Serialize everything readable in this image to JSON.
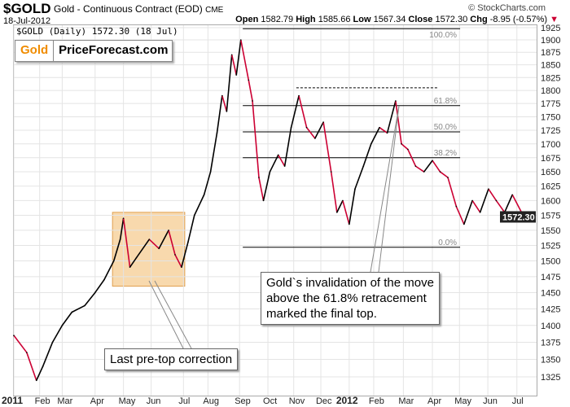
{
  "header": {
    "symbol": "$GOLD",
    "name": "Gold - Continuous Contract (EOD)",
    "exchange": "CME",
    "date": "18-Jul-2012",
    "credit": "© StockCharts.com",
    "open_label": "Open",
    "open": "1582.79",
    "high_label": "High",
    "high": "1585.66",
    "low_label": "Low",
    "low": "1567.34",
    "close_label": "Close",
    "close": "1572.30",
    "chg_label": "Chg",
    "chg": "-8.95 (-0.57%)",
    "chg_icon": "down-triangle-icon"
  },
  "legend": "$GOLD (Daily) 1572.30 (18 Jul)",
  "logo": {
    "gold": "Gold",
    "rest": "PriceForecast.com"
  },
  "annotations": {
    "top_note_lines": [
      "Gold`s invalidation of the move",
      "above the 61.8% retracement",
      "marked the final top."
    ],
    "correction_note": "Last pre-top correction"
  },
  "colors": {
    "up": "#000000",
    "down": "#cc0033",
    "highlight": "#f5c98a",
    "accent": "#f08c00"
  },
  "chart_data": {
    "type": "line",
    "scale": "log",
    "ylim": [
      1300,
      1935
    ],
    "yticks": [
      1325,
      1350,
      1375,
      1400,
      1425,
      1450,
      1475,
      1500,
      1525,
      1550,
      1575,
      1600,
      1625,
      1650,
      1675,
      1700,
      1725,
      1750,
      1775,
      1800,
      1825,
      1850,
      1875,
      1900,
      1925
    ],
    "xticks": [
      {
        "label": "2011",
        "week": 0,
        "bold": true
      },
      {
        "label": "Feb",
        "week": 4
      },
      {
        "label": "Mar",
        "week": 7.5
      },
      {
        "label": "Apr",
        "week": 12.6
      },
      {
        "label": "May",
        "week": 17
      },
      {
        "label": "Jun",
        "week": 21.3
      },
      {
        "label": "Jul",
        "week": 26.3
      },
      {
        "label": "Aug",
        "week": 30.1
      },
      {
        "label": "Sep",
        "week": 35
      },
      {
        "label": "Oct",
        "week": 39.4
      },
      {
        "label": "Nov",
        "week": 43.4
      },
      {
        "label": "Dec",
        "week": 47.6
      },
      {
        "label": "2012",
        "week": 52,
        "bold": true
      },
      {
        "label": "Feb",
        "week": 55.8
      },
      {
        "label": "Mar",
        "week": 60.4
      },
      {
        "label": "Apr",
        "week": 64.9
      },
      {
        "label": "May",
        "week": 69.1
      },
      {
        "label": "Jun",
        "week": 73.5
      },
      {
        "label": "Jul",
        "week": 78
      }
    ],
    "points": [
      [
        0,
        1385
      ],
      [
        2,
        1360
      ],
      [
        3.5,
        1320
      ],
      [
        4.5,
        1340
      ],
      [
        6,
        1375
      ],
      [
        7.5,
        1400
      ],
      [
        9,
        1420
      ],
      [
        11,
        1430
      ],
      [
        12.6,
        1450
      ],
      [
        14,
        1470
      ],
      [
        15.5,
        1500
      ],
      [
        16.5,
        1535
      ],
      [
        17,
        1570
      ],
      [
        18,
        1490
      ],
      [
        19,
        1505
      ],
      [
        21,
        1535
      ],
      [
        22.5,
        1520
      ],
      [
        24,
        1550
      ],
      [
        25,
        1510
      ],
      [
        26,
        1490
      ],
      [
        27,
        1530
      ],
      [
        28,
        1575
      ],
      [
        29.5,
        1610
      ],
      [
        30.5,
        1650
      ],
      [
        31.5,
        1720
      ],
      [
        32.3,
        1790
      ],
      [
        33,
        1760
      ],
      [
        33.8,
        1870
      ],
      [
        34.5,
        1830
      ],
      [
        35.2,
        1900
      ],
      [
        36.4,
        1820
      ],
      [
        37,
        1780
      ],
      [
        38,
        1640
      ],
      [
        38.7,
        1600
      ],
      [
        39.7,
        1650
      ],
      [
        41,
        1680
      ],
      [
        42,
        1660
      ],
      [
        43,
        1730
      ],
      [
        44.2,
        1790
      ],
      [
        45.4,
        1730
      ],
      [
        46.7,
        1710
      ],
      [
        48,
        1740
      ],
      [
        49.2,
        1650
      ],
      [
        50.1,
        1580
      ],
      [
        51,
        1600
      ],
      [
        52,
        1560
      ],
      [
        52.9,
        1620
      ],
      [
        54.2,
        1660
      ],
      [
        55.4,
        1700
      ],
      [
        56.7,
        1730
      ],
      [
        57.9,
        1720
      ],
      [
        59.2,
        1780
      ],
      [
        60.1,
        1700
      ],
      [
        61.1,
        1690
      ],
      [
        62.3,
        1660
      ],
      [
        63.6,
        1650
      ],
      [
        64.9,
        1670
      ],
      [
        66.1,
        1650
      ],
      [
        67.3,
        1640
      ],
      [
        68.6,
        1590
      ],
      [
        69.8,
        1560
      ],
      [
        71.1,
        1600
      ],
      [
        72.3,
        1580
      ],
      [
        73.6,
        1620
      ],
      [
        74.8,
        1600
      ],
      [
        76.1,
        1580
      ],
      [
        77.3,
        1610
      ],
      [
        79.2,
        1570
      ],
      [
        79.8,
        1572.3
      ]
    ],
    "fib": {
      "high": 1923,
      "low": 1522,
      "levels": [
        {
          "label": "100.0%",
          "value": 1923
        },
        {
          "label": "61.8%",
          "value": 1771
        },
        {
          "label": "50.0%",
          "value": 1722
        },
        {
          "label": "38.2%",
          "value": 1675
        },
        {
          "label": "0.0%",
          "value": 1522
        }
      ],
      "dashed_level": 1805
    },
    "last_price_label": "1572.30"
  }
}
